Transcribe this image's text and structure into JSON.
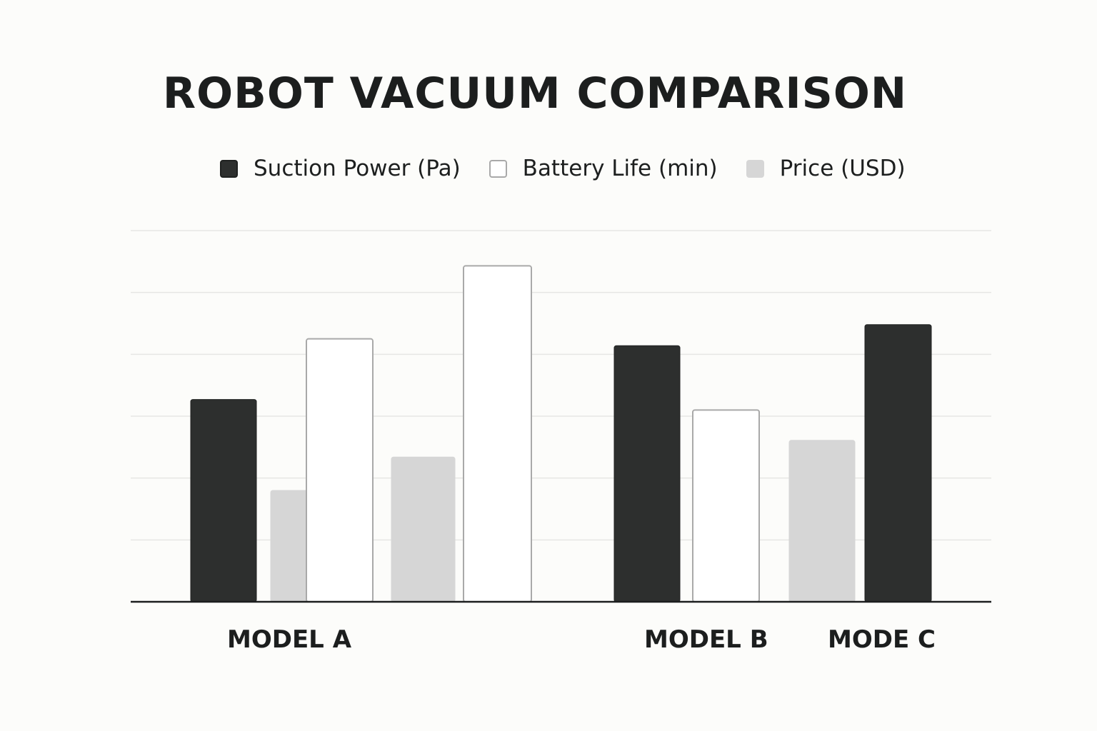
{
  "chart_data": {
    "type": "bar",
    "title": "ROBOT VACUUM COMPARISON",
    "xlabel": "",
    "ylabel": "",
    "ylim": [
      0,
      6
    ],
    "grid": true,
    "legend_placement": "top",
    "categories": [
      "MODEL A",
      "MODEL B",
      "MODE C"
    ],
    "series": [
      {
        "name": "Suction Power (Pa)",
        "color": "#2d2f2e",
        "border": "#1f2120"
      },
      {
        "name": "Battery Life (min)",
        "color": "#ffffff",
        "border": "#a9a9a9"
      },
      {
        "name": "Price (USD)",
        "color": "#d6d6d6",
        "border": "#d6d6d6"
      }
    ],
    "bars": [
      {
        "series": 0,
        "value": 3.27
      },
      {
        "series": 2,
        "value": 1.8
      },
      {
        "series": 1,
        "value": 4.25
      },
      {
        "series": 2,
        "value": 2.34
      },
      {
        "series": 1,
        "value": 5.43
      },
      {
        "series": 0,
        "value": 4.14
      },
      {
        "series": 1,
        "value": 3.1
      },
      {
        "series": 2,
        "value": 2.61
      },
      {
        "series": 0,
        "value": 4.48
      }
    ]
  }
}
